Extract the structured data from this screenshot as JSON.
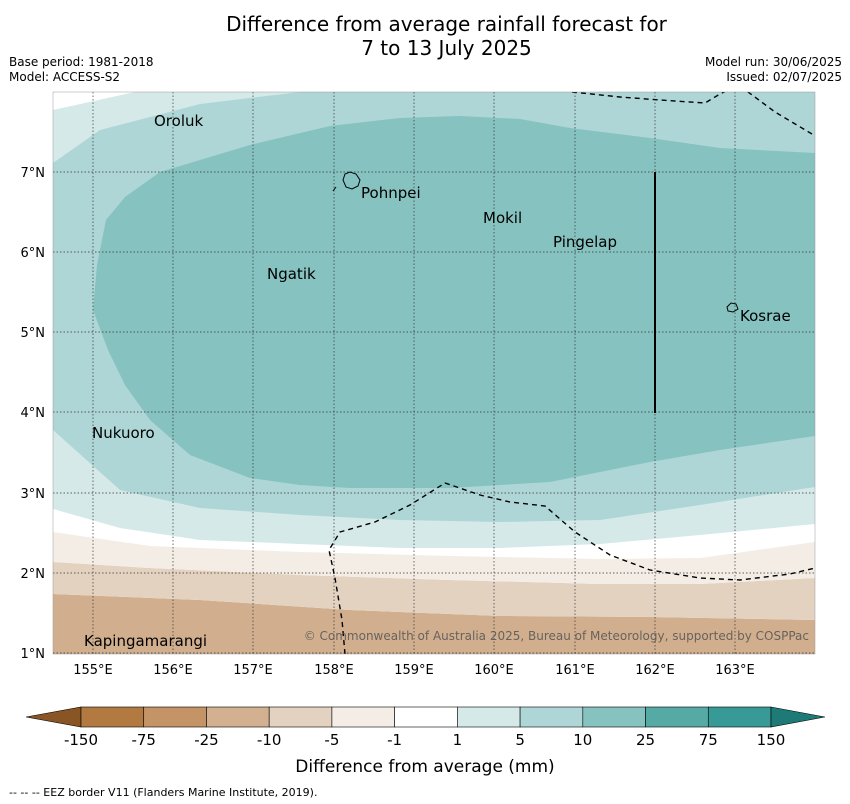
{
  "title_line1": "Difference from average rainfall forecast for",
  "title_line2": "7 to 13 July 2025",
  "base_period": "Base period: 1981-2018",
  "model": "Model: ACCESS-S2",
  "model_run": "Model run: 30/06/2025",
  "issued": "Issued: 02/07/2025",
  "lon_labels": [
    "155°E",
    "156°E",
    "157°E",
    "158°E",
    "159°E",
    "160°E",
    "161°E",
    "162°E",
    "163°E"
  ],
  "lat_labels": [
    "7°N",
    "6°N",
    "5°N",
    "4°N",
    "3°N",
    "2°N",
    "1°N"
  ],
  "places": [
    "Oroluk",
    "Pohnpei",
    "Mokil",
    "Pingelap",
    "Ngatik",
    "Kosrae",
    "Nukuoro",
    "Kapingamarangi"
  ],
  "copyright": "© Commonwealth of Australia 2025, Bureau of Meteorology, supported by COSPPac",
  "colorbar": {
    "ticks": [
      "-150",
      "-75",
      "-25",
      "-10",
      "-5",
      "-1",
      "1",
      "5",
      "10",
      "25",
      "75",
      "150"
    ],
    "colors": [
      "#8a5524",
      "#b27a40",
      "#c49466",
      "#d2b090",
      "#e4d2c0",
      "#f3ede6",
      "#ffffff",
      "#d6e9e9",
      "#aed6d6",
      "#86c2c0",
      "#55aaa6",
      "#389a96",
      "#1e7a76"
    ],
    "title": "Difference from average (mm)"
  },
  "footer": "-- -- -- EEZ border V11 (Flanders Marine Institute, 2019)."
}
